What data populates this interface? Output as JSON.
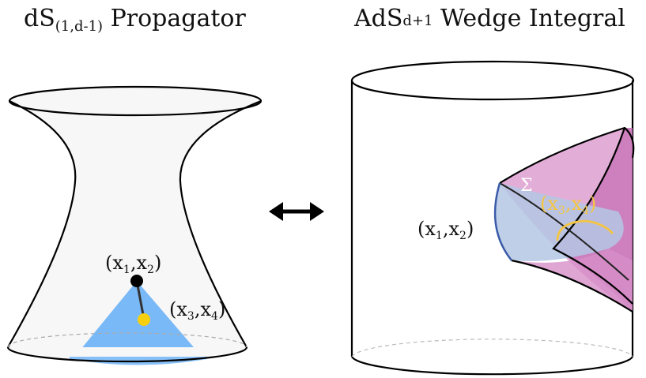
{
  "titles": {
    "left": {
      "main": "dS",
      "sub": "(1,d-1)",
      "rest": " Propagator"
    },
    "right": {
      "main": "AdS",
      "sub": "d+1",
      "rest": " Wedge Integral"
    }
  },
  "left_panel": {
    "point_label_1": "x",
    "point_sub_1": "1",
    "point_label_2": "x",
    "point_sub_2": "2",
    "point_label_3": "x",
    "point_sub_3": "3",
    "point_label_4": "x",
    "point_sub_4": "4",
    "colors": {
      "cone": "#7ab9f7",
      "point_black": "#000000",
      "point_yellow": "#f6cf0e"
    }
  },
  "arrow": {
    "symbol": "↔"
  },
  "right_panel": {
    "sigma": "Σ",
    "colors": {
      "wedge_pink": "#d78fc8",
      "wedge_pink_dark": "#c66fb5",
      "surface_blue": "#b4c7e4",
      "curve_yellow": "#f4c542",
      "rim_blue": "#3a5ba8"
    }
  }
}
